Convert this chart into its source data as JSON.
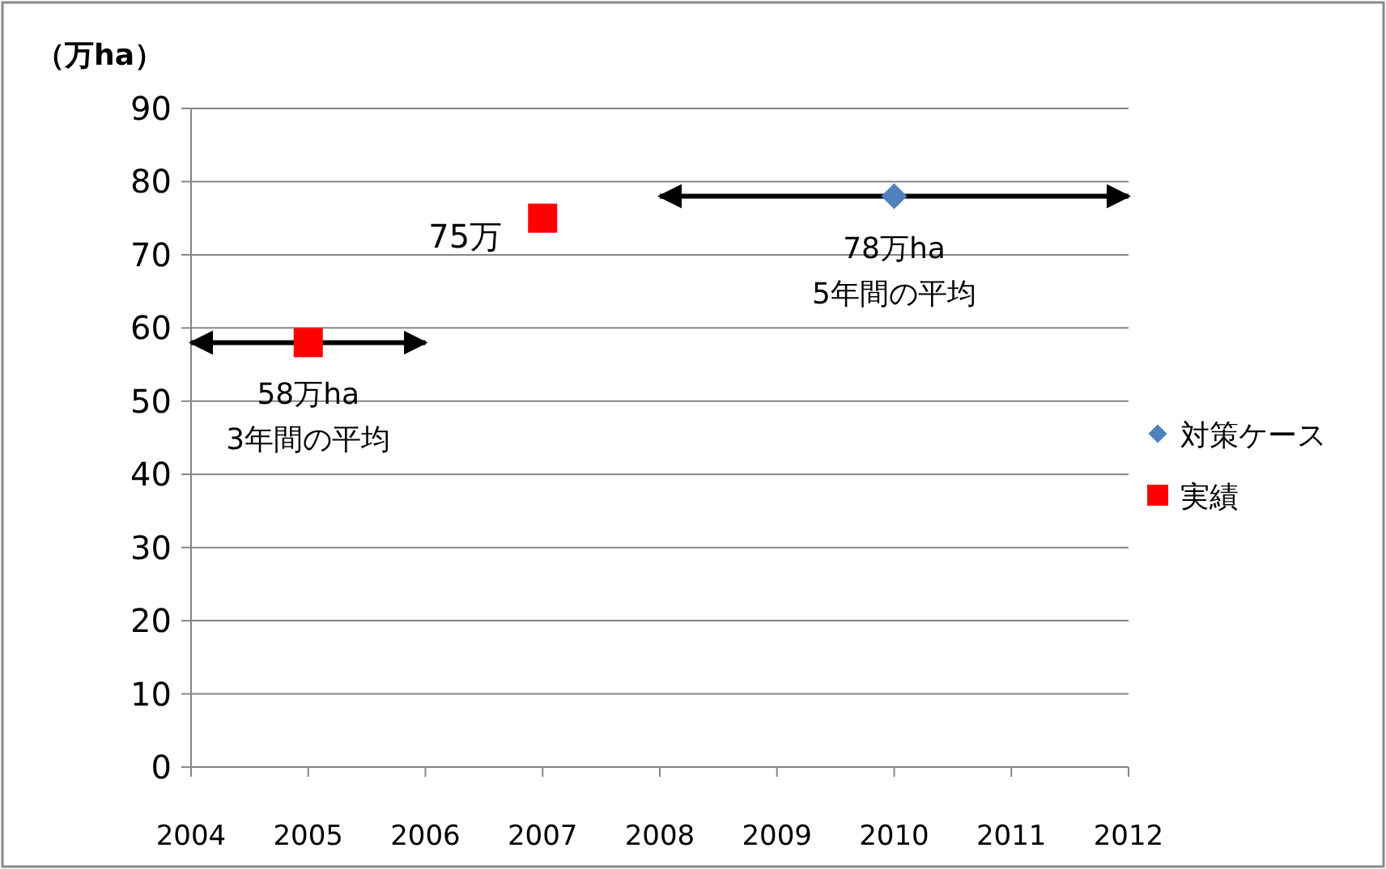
{
  "chart_data": {
    "type": "scatter",
    "ylabel": "（万ha）",
    "xlim": [
      2004,
      2012
    ],
    "xticks": [
      2004,
      2005,
      2006,
      2007,
      2008,
      2009,
      2010,
      2011,
      2012
    ],
    "ylim": [
      0,
      90
    ],
    "yticks": [
      0,
      10,
      20,
      30,
      40,
      50,
      60,
      70,
      80,
      90
    ],
    "grid": "y",
    "legend": "right",
    "series": [
      {
        "name": "対策ケース",
        "color": "#4f81bd",
        "marker": "diamond",
        "x": [
          2010
        ],
        "values": [
          78
        ],
        "xerrors": [
          2
        ]
      },
      {
        "name": "実績",
        "color": "#ff0000",
        "marker": "square",
        "x": [
          2005,
          2007
        ],
        "values": [
          58,
          75
        ],
        "xerrors": [
          1,
          null
        ]
      }
    ],
    "annotations": [
      {
        "text": "58万ha\n3年間の平均",
        "x": 2005,
        "y": 58
      },
      {
        "text": "75万",
        "x": 2007,
        "y": 75
      },
      {
        "text": "78万ha\n5年間の平均",
        "x": 2010,
        "y": 78
      }
    ]
  }
}
